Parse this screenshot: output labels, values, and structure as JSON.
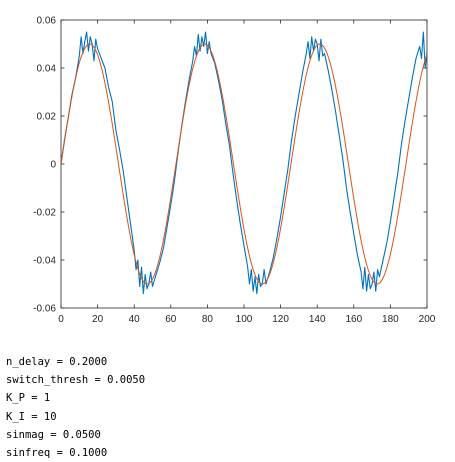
{
  "chart_data": {
    "type": "line",
    "title": "",
    "xlabel": "",
    "ylabel": "",
    "xlim": [
      0,
      200
    ],
    "ylim": [
      -0.06,
      0.06
    ],
    "xticks": [
      0,
      20,
      40,
      60,
      80,
      100,
      120,
      140,
      160,
      180,
      200
    ],
    "xtick_labels": [
      "0",
      "20",
      "40",
      "60",
      "80",
      "100",
      "120",
      "140",
      "160",
      "180",
      "200"
    ],
    "yticks": [
      -0.06,
      -0.04,
      -0.02,
      0,
      0.02,
      0.04,
      0.06
    ],
    "ytick_labels": [
      "-0.06",
      "-0.04",
      "-0.02",
      "0",
      "0.02",
      "0.04",
      "0.06"
    ],
    "grid": false,
    "legend": false,
    "series": [
      {
        "color": "#0072BD",
        "description_visible": "noisy measured signal",
        "x": [
          0,
          2,
          4,
          6,
          8,
          10,
          11,
          12,
          13,
          14,
          15,
          16,
          17,
          18,
          19,
          20,
          22,
          24,
          26,
          28,
          30,
          32,
          34,
          36,
          38,
          40,
          41,
          42,
          43,
          44,
          45,
          46,
          47,
          48,
          49,
          50,
          52,
          54,
          56,
          58,
          60,
          62,
          64,
          66,
          68,
          70,
          72,
          73,
          74,
          75,
          76,
          77,
          78,
          79,
          80,
          81,
          82,
          84,
          86,
          88,
          90,
          92,
          94,
          96,
          98,
          100,
          102,
          103,
          104,
          105,
          106,
          107,
          108,
          109,
          110,
          111,
          112,
          114,
          116,
          118,
          120,
          122,
          124,
          126,
          128,
          130,
          132,
          134,
          135,
          136,
          137,
          138,
          139,
          140,
          141,
          142,
          143,
          144,
          146,
          148,
          150,
          152,
          154,
          156,
          158,
          160,
          162,
          164,
          165,
          166,
          167,
          168,
          169,
          170,
          171,
          172,
          173,
          174,
          176,
          178,
          180,
          182,
          184,
          186,
          188,
          190,
          192,
          194,
          196,
          197,
          198,
          199,
          200
        ],
        "y": [
          0.0,
          0.0105,
          0.0195,
          0.029,
          0.036,
          0.045,
          0.053,
          0.046,
          0.051,
          0.055,
          0.047,
          0.053,
          0.05,
          0.043,
          0.052,
          0.048,
          0.044,
          0.04,
          0.032,
          0.026,
          0.014,
          0.006,
          -0.003,
          -0.014,
          -0.025,
          -0.036,
          -0.044,
          -0.04,
          -0.051,
          -0.043,
          -0.054,
          -0.046,
          -0.052,
          -0.05,
          -0.045,
          -0.051,
          -0.046,
          -0.041,
          -0.035,
          -0.026,
          -0.017,
          -0.007,
          0.005,
          0.016,
          0.026,
          0.035,
          0.043,
          0.049,
          0.045,
          0.054,
          0.047,
          0.053,
          0.049,
          0.055,
          0.046,
          0.051,
          0.046,
          0.042,
          0.035,
          0.027,
          0.017,
          0.008,
          -0.004,
          -0.015,
          -0.025,
          -0.034,
          -0.043,
          -0.05,
          -0.044,
          -0.053,
          -0.047,
          -0.054,
          -0.046,
          -0.051,
          -0.05,
          -0.044,
          -0.05,
          -0.045,
          -0.039,
          -0.031,
          -0.022,
          -0.012,
          -0.002,
          0.01,
          0.02,
          0.029,
          0.038,
          0.046,
          0.051,
          0.044,
          0.053,
          0.047,
          0.052,
          0.05,
          0.043,
          0.052,
          0.045,
          0.046,
          0.039,
          0.031,
          0.022,
          0.012,
          0.002,
          -0.01,
          -0.02,
          -0.029,
          -0.038,
          -0.045,
          -0.052,
          -0.043,
          -0.053,
          -0.046,
          -0.052,
          -0.05,
          -0.045,
          -0.053,
          -0.044,
          -0.047,
          -0.04,
          -0.033,
          -0.024,
          -0.014,
          -0.004,
          0.008,
          0.018,
          0.027,
          0.036,
          0.044,
          0.049,
          0.044,
          0.055,
          0.04,
          0.047
        ]
      },
      {
        "color": "#D95319",
        "description_visible": "reference sinusoid",
        "amplitude": 0.05,
        "frequency": 0.1,
        "x_range": [
          0,
          200
        ]
      }
    ]
  },
  "console": {
    "lines": [
      "n_delay = 0.2000",
      "switch_thresh = 0.0050",
      "K_P = 1",
      "K_I = 10",
      "sinmag = 0.0500",
      "sinfreq = 0.1000"
    ]
  }
}
